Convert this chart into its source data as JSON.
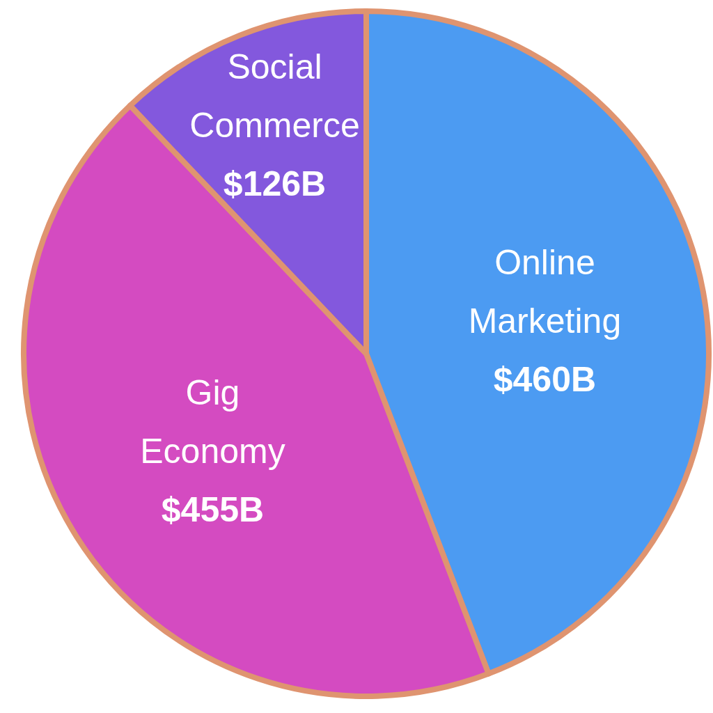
{
  "chart_data": {
    "type": "pie",
    "categories": [
      "Online Marketing",
      "Gig Economy",
      "Social Commerce"
    ],
    "values": [
      460,
      455,
      126
    ],
    "value_labels": [
      "$460B",
      "$455B",
      "$126B"
    ],
    "colors": [
      "#4c9bf2",
      "#d44bc1",
      "#8358dd"
    ],
    "legend": false
  }
}
